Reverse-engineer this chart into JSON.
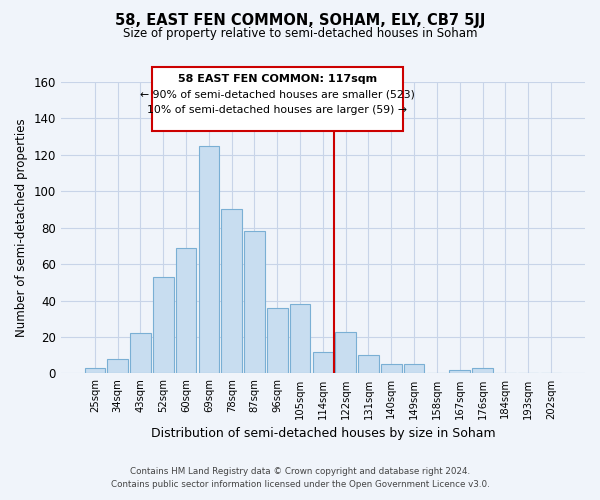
{
  "title": "58, EAST FEN COMMON, SOHAM, ELY, CB7 5JJ",
  "subtitle": "Size of property relative to semi-detached houses in Soham",
  "xlabel": "Distribution of semi-detached houses by size in Soham",
  "ylabel": "Number of semi-detached properties",
  "bar_labels": [
    "25sqm",
    "34sqm",
    "43sqm",
    "52sqm",
    "60sqm",
    "69sqm",
    "78sqm",
    "87sqm",
    "96sqm",
    "105sqm",
    "114sqm",
    "122sqm",
    "131sqm",
    "140sqm",
    "149sqm",
    "158sqm",
    "167sqm",
    "176sqm",
    "184sqm",
    "193sqm",
    "202sqm"
  ],
  "bar_values": [
    3,
    8,
    22,
    53,
    69,
    125,
    90,
    78,
    36,
    38,
    12,
    23,
    10,
    5,
    5,
    0,
    2,
    3,
    0,
    0,
    0
  ],
  "bar_color": "#c8ddf0",
  "bar_edge_color": "#7aafd4",
  "vline_x": 10.5,
  "vline_color": "#cc0000",
  "ylim": [
    0,
    160
  ],
  "yticks": [
    0,
    20,
    40,
    60,
    80,
    100,
    120,
    140,
    160
  ],
  "annotation_title": "58 EAST FEN COMMON: 117sqm",
  "annotation_line1": "← 90% of semi-detached houses are smaller (523)",
  "annotation_line2": "10% of semi-detached houses are larger (59) →",
  "footer_line1": "Contains HM Land Registry data © Crown copyright and database right 2024.",
  "footer_line2": "Contains public sector information licensed under the Open Government Licence v3.0.",
  "background_color": "#f0f4fa",
  "grid_color": "#c8d4e8"
}
